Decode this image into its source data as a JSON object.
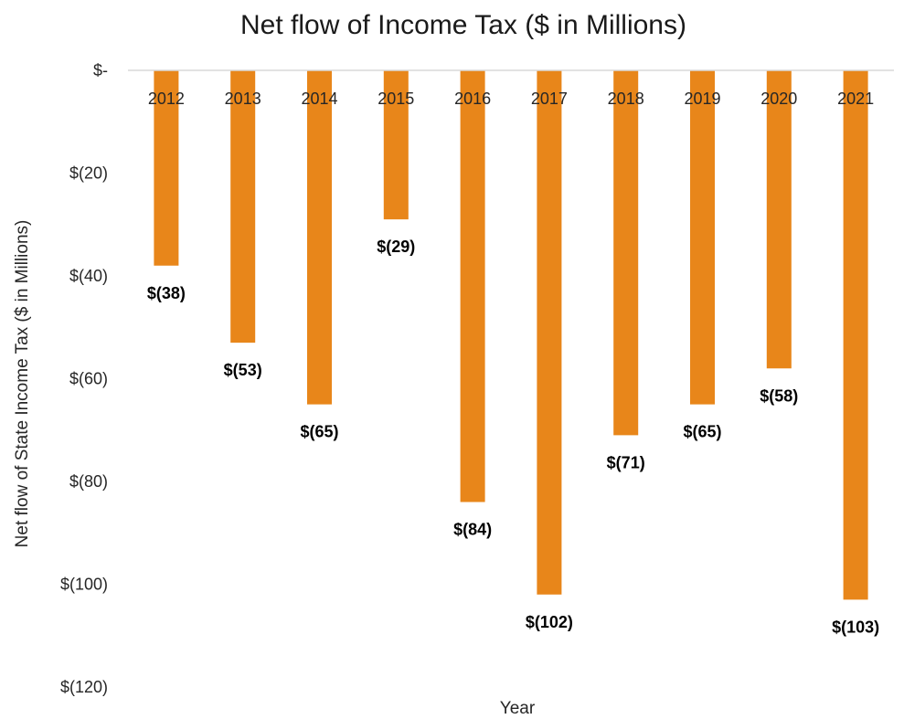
{
  "chart_data": {
    "type": "bar",
    "title": "Net flow of Income Tax ($ in Millions)",
    "xlabel": "Year",
    "ylabel": "Net flow of State Income Tax ($ in Millions)",
    "categories": [
      "2012",
      "2013",
      "2014",
      "2015",
      "2016",
      "2017",
      "2018",
      "2019",
      "2020",
      "2021"
    ],
    "values": [
      -38,
      -53,
      -65,
      -29,
      -84,
      -102,
      -71,
      -65,
      -58,
      -103
    ],
    "data_labels": [
      "$(38)",
      "$(53)",
      "$(65)",
      "$(29)",
      "$(84)",
      "$(102)",
      "$(71)",
      "$(65)",
      "$(58)",
      "$(103)"
    ],
    "ylim": [
      -120,
      0
    ],
    "yticks": [
      0,
      -20,
      -40,
      -60,
      -80,
      -100,
      -120
    ],
    "ytick_labels": [
      "$-",
      "$(20)",
      "$(40)",
      "$(60)",
      "$(80)",
      "$(100)",
      "$(120)"
    ],
    "bar_color": "#E8861A",
    "grid": false,
    "legend": "none"
  }
}
